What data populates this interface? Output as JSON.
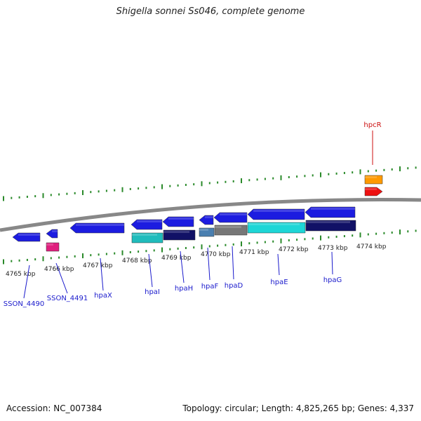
{
  "title": "Shigella sonnei Ss046, complete genome",
  "footer": {
    "accession": "Accession: NC_007384",
    "stats": "Topology: circular; Length: 4,825,265 bp; Genes: 4,337"
  },
  "colors": {
    "backbone": "#888888",
    "tick": "#2a8a2a",
    "label_blue": "#1a1acc",
    "label_red": "#cc1111",
    "gene_blue": "#1c1ce0",
    "cyan": "#1dd6d6",
    "teal": "#20bcbc",
    "navy": "#111166",
    "grey": "#777777",
    "steel": "#4a7fb0",
    "magenta": "#e0207e",
    "orange": "#ff9a00",
    "red": "#ee1111"
  },
  "scale_labels": [
    "4765 kbp",
    "4766 kbp",
    "4767 kbp",
    "4768 kbp",
    "4769 kbp",
    "4770 kbp",
    "4771 kbp",
    "4772 kbp",
    "4773 kbp",
    "4774 kbp"
  ],
  "gene_labels": [
    {
      "text": "SSON_4490",
      "color": "label_blue"
    },
    {
      "text": "SSON_4491",
      "color": "label_blue"
    },
    {
      "text": "hpaX",
      "color": "label_blue"
    },
    {
      "text": "hpaI",
      "color": "label_blue"
    },
    {
      "text": "hpaH",
      "color": "label_blue"
    },
    {
      "text": "hpaF",
      "color": "label_blue"
    },
    {
      "text": "hpaD",
      "color": "label_blue"
    },
    {
      "text": "hpaE",
      "color": "label_blue"
    },
    {
      "text": "hpaG",
      "color": "label_blue"
    },
    {
      "text": "hpcR",
      "color": "label_red"
    }
  ]
}
